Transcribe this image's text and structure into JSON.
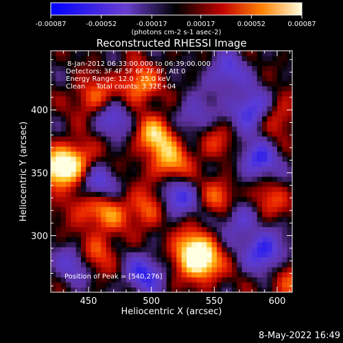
{
  "chart_data": {
    "type": "heatmap",
    "title": "Reconstructed RHESSI Image",
    "xlabel": "Heliocentric X (arcsec)",
    "ylabel": "Heliocentric Y (arcsec)",
    "xlim": [
      420,
      612
    ],
    "ylim": [
      255,
      447
    ],
    "x_ticks": [
      450,
      500,
      550,
      600
    ],
    "y_ticks": [
      300,
      350,
      400
    ],
    "colorbar": {
      "ticks": [
        "-0.00087",
        "-0.00052",
        "-0.00017",
        "0.00017",
        "0.00052",
        "0.00087"
      ],
      "range": [
        -0.00087,
        0.00087
      ],
      "unit_label": "(photons cm-2 s-1 asec-2)",
      "colors": [
        "#0000ff",
        "#6a3fd0",
        "#000000",
        "#c00000",
        "#ff8000",
        "#ffffe0"
      ]
    },
    "peak_position": [
      540,
      276
    ],
    "hotspots": [
      {
        "x": 540,
        "y": 279,
        "value": 0.00087
      },
      {
        "x": 530,
        "y": 290,
        "value": 0.0006
      },
      {
        "x": 425,
        "y": 352,
        "value": 0.0008
      },
      {
        "x": 440,
        "y": 360,
        "value": 0.0006
      },
      {
        "x": 503,
        "y": 380,
        "value": 0.0007
      },
      {
        "x": 490,
        "y": 420,
        "value": 0.0006
      },
      {
        "x": 515,
        "y": 358,
        "value": 0.0006
      },
      {
        "x": 497,
        "y": 322,
        "value": 0.0005
      },
      {
        "x": 465,
        "y": 318,
        "value": 0.0005
      },
      {
        "x": 455,
        "y": 285,
        "value": 0.0005
      },
      {
        "x": 592,
        "y": 327,
        "value": 0.0004
      },
      {
        "x": 555,
        "y": 330,
        "value": 0.00045
      },
      {
        "x": 550,
        "y": 375,
        "value": 0.0003
      },
      {
        "x": 600,
        "y": 395,
        "value": 0.0004
      },
      {
        "x": 610,
        "y": 262,
        "value": 0.0004
      },
      {
        "x": 455,
        "y": 410,
        "value": 0.0005
      },
      {
        "x": 445,
        "y": 325,
        "value": 0.0004
      }
    ],
    "coldspots": [
      {
        "x": 580,
        "y": 400,
        "value": -0.0007
      },
      {
        "x": 455,
        "y": 340,
        "value": -0.0006
      },
      {
        "x": 585,
        "y": 360,
        "value": -0.0006
      },
      {
        "x": 590,
        "y": 288,
        "value": -0.0007
      },
      {
        "x": 520,
        "y": 330,
        "value": -0.0006
      },
      {
        "x": 470,
        "y": 395,
        "value": -0.0005
      },
      {
        "x": 440,
        "y": 278,
        "value": -0.0005
      },
      {
        "x": 495,
        "y": 270,
        "value": -0.0006
      },
      {
        "x": 570,
        "y": 315,
        "value": -0.0005
      },
      {
        "x": 560,
        "y": 430,
        "value": -0.0005
      },
      {
        "x": 535,
        "y": 395,
        "value": -0.0004
      }
    ]
  },
  "info": {
    "line1": "8-Jan-2012 06:33:00.000 to 06:39:00.000",
    "line2": "Detectors: 3F 4F 5F 6F 7F 8F, Att 0",
    "line3": "Energy Range: 12.0 - 25.0 keV",
    "line4": "Clean     Total counts: 3.32E+04",
    "peak": "Position of Peak = [540,276]"
  },
  "date_stamp": "8-May-2022 16:49"
}
